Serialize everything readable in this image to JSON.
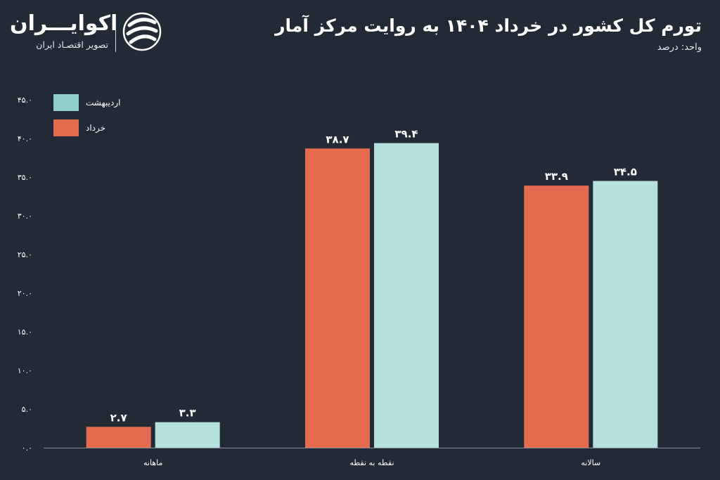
{
  "brand": {
    "name": "اکوایـــران",
    "tagline": "تصویر اقتصـاد ایران"
  },
  "header": {
    "title": "تورم کل کشور در خرداد ۱۴۰۴ به روایت مرکز آمار",
    "unit_label": "واحد: درصد"
  },
  "colors": {
    "background": "#222a35",
    "khordad": "#e56b50",
    "ordibehesht": "#b6e0dc",
    "legend_ordibehesht": "#8ecfca",
    "axis": "#8a929c",
    "text": "#ffffff"
  },
  "chart_data": {
    "type": "bar",
    "categories": [
      "ماهانه",
      "نقطه به نقطه",
      "سالانه"
    ],
    "series": [
      {
        "name": "خرداد",
        "values": [
          2.7,
          38.7,
          33.9
        ],
        "labels": [
          "۲.۷",
          "۳۸.۷",
          "۳۳.۹"
        ]
      },
      {
        "name": "اردیبهشت",
        "values": [
          3.3,
          39.4,
          34.5
        ],
        "labels": [
          "۳.۳",
          "۳۹.۴",
          "۳۴.۵"
        ]
      }
    ],
    "ylim": [
      0,
      45
    ],
    "yticks": [
      0,
      5,
      10,
      15,
      20,
      25,
      30,
      35,
      40,
      45
    ],
    "ytick_labels": [
      "۰.۰",
      "۵.۰",
      "۱۰.۰",
      "۱۵.۰",
      "۲۰.۰",
      "۲۵.۰",
      "۳۰.۰",
      "۳۵.۰",
      "۴۰.۰",
      "۴۵.۰"
    ],
    "grid": false,
    "legend_position": "top-left"
  }
}
